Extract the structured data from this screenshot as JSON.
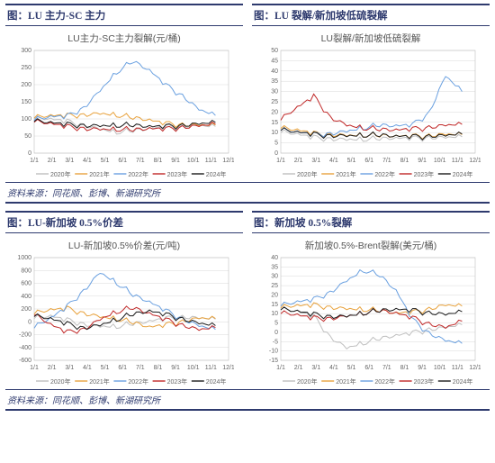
{
  "colors": {
    "nav": "#2e3a6e",
    "grid": "#d9d9d9",
    "border": "#bfbfbf",
    "text": "#666666"
  },
  "series_styles": [
    {
      "name": "2020年",
      "color": "#bfbfbf",
      "dash": ""
    },
    {
      "name": "2021年",
      "color": "#e8a23d",
      "dash": ""
    },
    {
      "name": "2022年",
      "color": "#6aa0e0",
      "dash": ""
    },
    {
      "name": "2023年",
      "color": "#c02828",
      "dash": ""
    },
    {
      "name": "2024年",
      "color": "#1a1a1a",
      "dash": ""
    }
  ],
  "x_ticks": [
    "1/1",
    "2/1",
    "3/1",
    "4/1",
    "5/1",
    "6/1",
    "7/1",
    "8/1",
    "9/1",
    "10/1",
    "11/1",
    "12/1"
  ],
  "source_line": "资料来源：同花顺、彭博、新湖研究所",
  "charts": [
    {
      "heading": "图：LU 主力-SC 主力",
      "title": "LU主力-SC主力裂解(元/桶)",
      "ylim": [
        0,
        300
      ],
      "ystep": 50,
      "series": [
        {
          "style": 0,
          "data": [
            100,
            98,
            95,
            85,
            72,
            60,
            62,
            70,
            78,
            80,
            82,
            78
          ]
        },
        {
          "style": 1,
          "data": [
            102,
            108,
            112,
            115,
            118,
            110,
            100,
            95,
            88,
            86,
            84,
            82
          ]
        },
        {
          "style": 2,
          "data": [
            95,
            105,
            110,
            135,
            185,
            235,
            265,
            240,
            200,
            170,
            130,
            110
          ]
        },
        {
          "style": 3,
          "data": [
            90,
            85,
            80,
            75,
            72,
            68,
            65,
            70,
            72,
            78,
            82,
            85
          ]
        },
        {
          "style": 4,
          "data": [
            92,
            88,
            86,
            84,
            82,
            80,
            78,
            76,
            80,
            84,
            88,
            90
          ]
        }
      ]
    },
    {
      "heading": "图：LU 裂解/新加坡低硫裂解",
      "title": "LU裂解/新加坡低硫裂解",
      "ylim": [
        0,
        50
      ],
      "ystep": 5,
      "series": [
        {
          "style": 0,
          "data": [
            10,
            9,
            8,
            7.5,
            7,
            6.5,
            6.5,
            7,
            7.5,
            8,
            8,
            8
          ]
        },
        {
          "style": 1,
          "data": [
            12,
            11,
            10,
            9.5,
            9,
            8.5,
            8,
            8,
            8.5,
            9,
            9.5,
            9
          ]
        },
        {
          "style": 2,
          "data": [
            11,
            10,
            9.5,
            10,
            11,
            12,
            13,
            13,
            14,
            20,
            38,
            30
          ]
        },
        {
          "style": 3,
          "data": [
            16,
            22,
            28,
            18,
            14,
            12,
            11,
            11,
            12,
            13,
            14,
            14
          ]
        },
        {
          "style": 4,
          "data": [
            11,
            10,
            9.5,
            9,
            8.8,
            8.5,
            8.2,
            8,
            8.3,
            8.7,
            9,
            9.3
          ]
        }
      ]
    },
    {
      "heading": "图：LU-新加坡 0.5%价差",
      "title": "LU-新加坡0.5%价差(元/吨)",
      "ylim": [
        -600,
        1000
      ],
      "ystep": 200,
      "series": [
        {
          "style": 0,
          "data": [
            50,
            80,
            40,
            -20,
            -60,
            -80,
            -50,
            0,
            60,
            90,
            70,
            40
          ]
        },
        {
          "style": 1,
          "data": [
            120,
            180,
            220,
            150,
            90,
            40,
            -30,
            -90,
            -40,
            20,
            70,
            50
          ]
        },
        {
          "style": 2,
          "data": [
            -100,
            50,
            250,
            500,
            780,
            600,
            400,
            300,
            180,
            60,
            -50,
            -120
          ]
        },
        {
          "style": 3,
          "data": [
            100,
            -50,
            -150,
            -100,
            50,
            150,
            200,
            120,
            40,
            -40,
            -110,
            -90
          ]
        },
        {
          "style": 4,
          "data": [
            80,
            40,
            -20,
            -80,
            -40,
            30,
            100,
            160,
            120,
            60,
            -10,
            -60
          ]
        }
      ]
    },
    {
      "heading": "图：新加坡 0.5%裂解",
      "title": "新加坡0.5%-Brent裂解(美元/桶)",
      "ylim": [
        -15,
        40
      ],
      "ystep": 5,
      "series": [
        {
          "style": 0,
          "data": [
            12,
            11,
            9,
            -2,
            -8,
            -6,
            -4,
            -2,
            0,
            2,
            3,
            4
          ]
        },
        {
          "style": 1,
          "data": [
            13,
            14,
            15,
            14,
            13,
            12,
            11,
            10,
            11,
            13,
            15,
            14
          ]
        },
        {
          "style": 2,
          "data": [
            14,
            16,
            18,
            22,
            28,
            33,
            30,
            22,
            7,
            0,
            -4,
            -6
          ]
        },
        {
          "style": 3,
          "data": [
            10,
            9,
            8,
            8,
            9,
            10,
            11,
            10,
            8,
            5,
            3,
            6
          ]
        },
        {
          "style": 4,
          "data": [
            12,
            11,
            10,
            9,
            9,
            10,
            11,
            12,
            12,
            11,
            10,
            11
          ]
        }
      ]
    }
  ]
}
